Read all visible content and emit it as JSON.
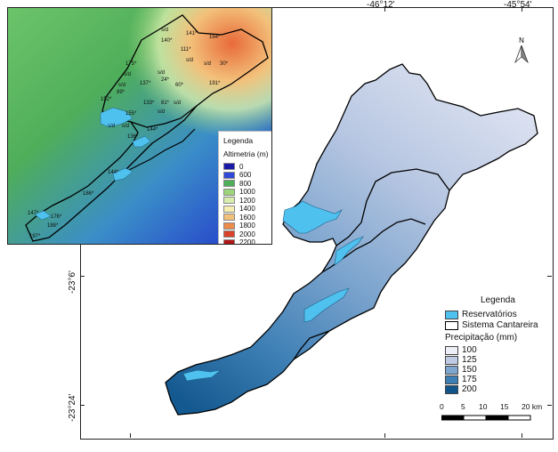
{
  "coordinates": {
    "top": [
      "-46°12'",
      "-45°54'"
    ],
    "left": [
      "-23°6'",
      "-23°24'"
    ]
  },
  "north_arrow": {
    "label": "N",
    "icon": "north-arrow-icon"
  },
  "inset": {
    "legend_title": "Legenda",
    "legend_subtitle": "Altimetria (m)",
    "classes": [
      {
        "label": "0",
        "color": "#1a1aa8"
      },
      {
        "label": "600",
        "color": "#2f49d6"
      },
      {
        "label": "800",
        "color": "#4fae5a"
      },
      {
        "label": "1000",
        "color": "#9cd47a"
      },
      {
        "label": "1200",
        "color": "#d8eeac"
      },
      {
        "label": "1400",
        "color": "#f5eeb0"
      },
      {
        "label": "1600",
        "color": "#f3c07a"
      },
      {
        "label": "1800",
        "color": "#ec8b4a"
      },
      {
        "label": "2000",
        "color": "#d9432a"
      },
      {
        "label": "2200",
        "color": "#b41616"
      }
    ],
    "rain_labels": [
      "141*",
      "164*",
      "140*",
      "111*",
      "s/d",
      "175*",
      "s/d",
      "s/d",
      "30*",
      "s/d",
      "s/d",
      "s/d",
      "89*",
      "137*",
      "24*",
      "60*",
      "191*",
      "152*",
      "133*",
      "81*",
      "s/d",
      "155*",
      "s/d",
      "s/d",
      "s/d",
      "144*",
      "136*",
      "144*",
      "186*",
      "147*",
      "176*",
      "188*",
      "197*"
    ]
  },
  "legend": {
    "title": "Legenda",
    "reservoirs": "Reservatórios",
    "system": "Sistema Cantareira",
    "precip_title": "Precipitação (mm)",
    "classes": [
      {
        "label": "100",
        "color": "#eceff7"
      },
      {
        "label": "125",
        "color": "#bfcbe4"
      },
      {
        "label": "150",
        "color": "#7fa6cf"
      },
      {
        "label": "175",
        "color": "#3d7fb5"
      },
      {
        "label": "200",
        "color": "#10548a"
      }
    ],
    "reservoir_color": "#4fc1ee"
  },
  "scale": {
    "ticks": [
      "0",
      "5",
      "10",
      "15",
      "20 km"
    ]
  }
}
